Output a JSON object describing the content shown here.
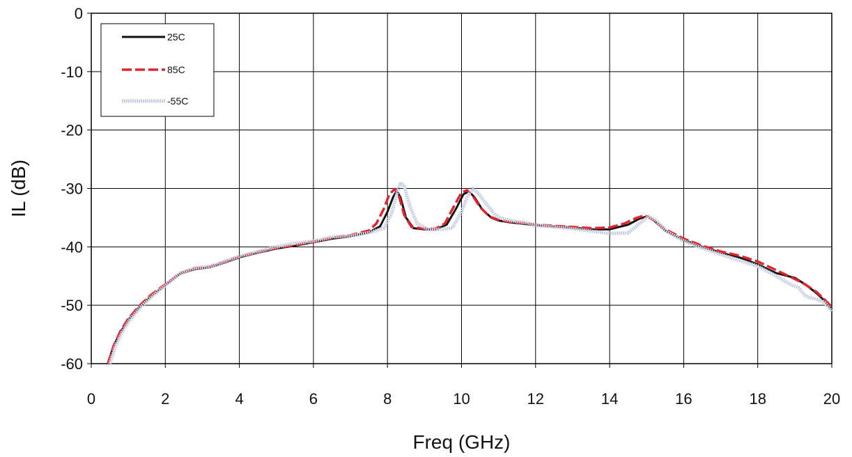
{
  "chart_data": {
    "type": "line",
    "title": "",
    "xlabel": "Freq (GHz)",
    "ylabel": "IL (dB)",
    "xlim": [
      0,
      20
    ],
    "ylim": [
      -60,
      0
    ],
    "xticks": [
      0,
      2,
      4,
      6,
      8,
      10,
      12,
      14,
      16,
      18,
      20
    ],
    "yticks": [
      0,
      -10,
      -20,
      -30,
      -40,
      -50,
      -60
    ],
    "grid": true,
    "legend_position": "top-left",
    "series": [
      {
        "name": "25C",
        "color": "#111111",
        "style": "solid",
        "x": [
          0.45,
          0.6,
          0.8,
          1.0,
          1.3,
          1.6,
          2.0,
          2.4,
          2.8,
          3.2,
          3.6,
          4.0,
          4.5,
          5.0,
          5.5,
          6.0,
          6.5,
          7.0,
          7.5,
          7.8,
          8.0,
          8.15,
          8.25,
          8.35,
          8.5,
          8.7,
          9.0,
          9.3,
          9.6,
          9.85,
          10.05,
          10.2,
          10.35,
          10.55,
          10.8,
          11.0,
          11.3,
          11.6,
          12.0,
          12.5,
          13.0,
          13.5,
          14.0,
          14.5,
          14.8,
          15.0,
          15.2,
          15.5,
          16.0,
          16.5,
          17.0,
          17.5,
          18.0,
          18.5,
          19.0,
          19.3,
          19.6,
          19.8,
          20.0
        ],
        "y": [
          -60,
          -57,
          -54.5,
          -52.5,
          -50.3,
          -48.5,
          -46.5,
          -44.6,
          -43.8,
          -43.5,
          -42.7,
          -41.8,
          -41.0,
          -40.3,
          -39.8,
          -39.2,
          -38.6,
          -38.2,
          -37.5,
          -36.5,
          -34.0,
          -31.5,
          -30.4,
          -31.5,
          -35.0,
          -36.8,
          -37.0,
          -37.0,
          -36.2,
          -33.5,
          -31.0,
          -30.5,
          -31.5,
          -33.5,
          -35.0,
          -35.5,
          -35.8,
          -36.0,
          -36.3,
          -36.5,
          -36.7,
          -37.0,
          -37.0,
          -36.2,
          -35.2,
          -34.8,
          -35.5,
          -37.2,
          -38.8,
          -40.0,
          -41.0,
          -41.8,
          -43.0,
          -44.5,
          -45.3,
          -46.5,
          -48.0,
          -49.2,
          -50.7
        ]
      },
      {
        "name": "85C",
        "color": "#e3232a",
        "style": "dashed",
        "x": [
          0.45,
          0.6,
          0.8,
          1.0,
          1.3,
          1.6,
          2.0,
          2.4,
          2.8,
          3.2,
          3.6,
          4.0,
          4.5,
          5.0,
          5.5,
          6.0,
          6.5,
          7.0,
          7.5,
          7.7,
          7.9,
          8.05,
          8.2,
          8.3,
          8.45,
          8.65,
          9.0,
          9.3,
          9.55,
          9.8,
          10.0,
          10.15,
          10.3,
          10.5,
          10.75,
          11.0,
          11.3,
          11.6,
          12.0,
          12.5,
          13.0,
          13.5,
          14.0,
          14.4,
          14.7,
          14.95,
          15.15,
          15.5,
          16.0,
          16.5,
          17.0,
          17.5,
          18.0,
          18.5,
          19.0,
          19.3,
          19.6,
          19.8,
          20.0
        ],
        "y": [
          -60,
          -57,
          -54.3,
          -52.3,
          -50.1,
          -48.3,
          -46.4,
          -44.5,
          -43.7,
          -43.4,
          -42.6,
          -41.7,
          -40.9,
          -40.2,
          -39.7,
          -39.1,
          -38.5,
          -38.0,
          -37.2,
          -36.0,
          -33.5,
          -31.0,
          -30.1,
          -31.0,
          -34.5,
          -36.6,
          -36.9,
          -36.9,
          -36.0,
          -33.0,
          -30.7,
          -30.3,
          -31.2,
          -33.2,
          -34.8,
          -35.4,
          -35.7,
          -35.9,
          -36.2,
          -36.4,
          -36.6,
          -36.8,
          -36.7,
          -36.0,
          -35.1,
          -34.6,
          -35.3,
          -37.0,
          -38.6,
          -39.8,
          -40.8,
          -41.5,
          -42.5,
          -44.0,
          -45.5,
          -46.5,
          -47.8,
          -49.0,
          -50.3
        ]
      },
      {
        "name": "-55C",
        "color": "#c5cde0",
        "style": "dotted",
        "x": [
          0.5,
          0.65,
          0.85,
          1.05,
          1.35,
          1.65,
          2.0,
          2.4,
          2.8,
          3.2,
          3.6,
          4.0,
          4.5,
          5.0,
          5.5,
          6.0,
          6.5,
          7.0,
          7.5,
          7.9,
          8.1,
          8.25,
          8.35,
          8.45,
          8.6,
          8.8,
          9.1,
          9.4,
          9.75,
          10.0,
          10.15,
          10.3,
          10.45,
          10.65,
          10.9,
          11.1,
          11.4,
          11.7,
          12.0,
          12.5,
          13.0,
          13.5,
          14.0,
          14.5,
          14.85,
          15.05,
          15.25,
          15.55,
          16.0,
          16.5,
          17.0,
          17.5,
          18.0,
          18.5,
          18.9,
          19.1,
          19.3,
          19.6,
          19.8,
          20.0
        ],
        "y": [
          -60,
          -57,
          -54.4,
          -52.4,
          -50.2,
          -48.4,
          -46.6,
          -44.5,
          -43.6,
          -43.4,
          -42.5,
          -41.6,
          -40.8,
          -40.0,
          -39.4,
          -39.0,
          -38.3,
          -38.1,
          -37.6,
          -36.8,
          -34.5,
          -31.0,
          -29.0,
          -29.5,
          -33.0,
          -36.0,
          -37.0,
          -37.0,
          -36.8,
          -34.0,
          -31.5,
          -30.0,
          -30.8,
          -32.5,
          -34.5,
          -35.2,
          -35.6,
          -35.8,
          -36.3,
          -36.6,
          -36.9,
          -37.3,
          -37.7,
          -37.6,
          -35.8,
          -34.8,
          -35.5,
          -37.4,
          -39.0,
          -40.2,
          -41.3,
          -42.3,
          -43.3,
          -45.0,
          -46.5,
          -47.0,
          -48.5,
          -49.0,
          -49.5,
          -51.0
        ]
      }
    ]
  }
}
